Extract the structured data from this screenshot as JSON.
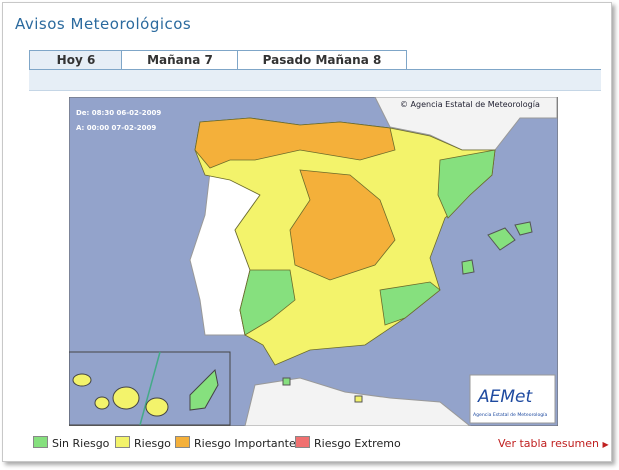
{
  "header": {
    "title": "Avisos Meteorológicos"
  },
  "tabs": [
    "Hoy 6",
    "Mañana 7",
    "Pasado Mañana 8"
  ],
  "map": {
    "from": "De: 08:30 06-02-2009",
    "to": "A:  00:00 07-02-2009",
    "copyright": "© Agencia Estatal de Meteorología",
    "logo": "AEMet",
    "logo_caption": "Agencia Estatal de Meteorología"
  },
  "legend": [
    "Sin Riesgo",
    "Riesgo",
    "Riesgo Importante",
    "Riesgo Extremo"
  ],
  "link": "Ver tabla resumen"
}
